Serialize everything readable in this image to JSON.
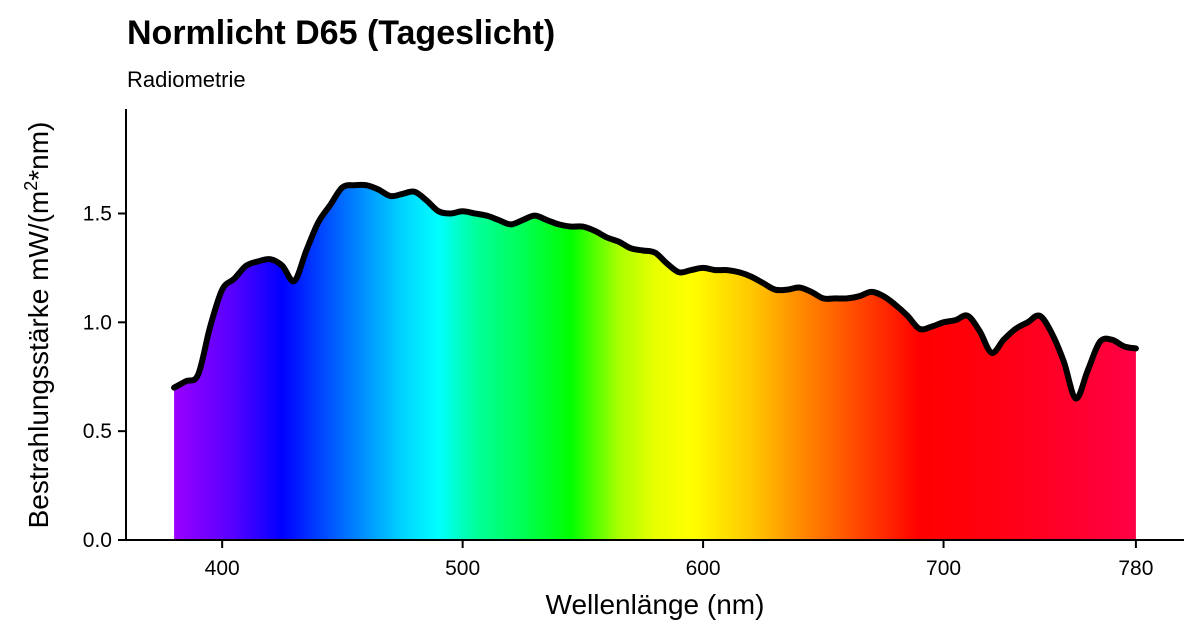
{
  "chart_data": {
    "type": "area",
    "title": "Normlicht D65 (Tageslicht)",
    "subtitle": "Radiometrie",
    "xlabel": "Wellenlänge (nm)",
    "ylabel_main": "Bestrahlungsstärke  mW/(m",
    "ylabel_sup": "2",
    "ylabel_tail": "*nm)",
    "xlim": [
      360,
      800
    ],
    "ylim": [
      0,
      1.98
    ],
    "x_ticks": [
      400,
      500,
      600,
      700,
      780
    ],
    "y_ticks": [
      0.0,
      0.5,
      1.0,
      1.5
    ],
    "y_tick_labels": [
      "0.0",
      "0.5",
      "1.0",
      "1.5"
    ],
    "grid": false,
    "line_color": "#000000",
    "fill": "visible-spectrum gradient (violet → blue → cyan → green → yellow → orange → red)",
    "gradient_stops": [
      {
        "nm": 380,
        "color": "#9a00ff"
      },
      {
        "nm": 405,
        "color": "#5500ff"
      },
      {
        "nm": 425,
        "color": "#0000ff"
      },
      {
        "nm": 440,
        "color": "#0040ff"
      },
      {
        "nm": 460,
        "color": "#0095ff"
      },
      {
        "nm": 475,
        "color": "#00d4ff"
      },
      {
        "nm": 490,
        "color": "#00ffff"
      },
      {
        "nm": 505,
        "color": "#00ff9d"
      },
      {
        "nm": 525,
        "color": "#00ff55"
      },
      {
        "nm": 545,
        "color": "#00ff00"
      },
      {
        "nm": 565,
        "color": "#aaff00"
      },
      {
        "nm": 580,
        "color": "#e8ff00"
      },
      {
        "nm": 595,
        "color": "#ffff00"
      },
      {
        "nm": 620,
        "color": "#ffc800"
      },
      {
        "nm": 640,
        "color": "#ff8c00"
      },
      {
        "nm": 665,
        "color": "#ff4600"
      },
      {
        "nm": 690,
        "color": "#ff0000"
      },
      {
        "nm": 720,
        "color": "#ff0010"
      },
      {
        "nm": 780,
        "color": "#ff0045"
      }
    ],
    "x": [
      380,
      385,
      390,
      395,
      400,
      405,
      410,
      415,
      420,
      425,
      430,
      435,
      440,
      445,
      450,
      455,
      460,
      465,
      470,
      475,
      480,
      485,
      490,
      495,
      500,
      505,
      510,
      515,
      520,
      525,
      530,
      535,
      540,
      545,
      550,
      555,
      560,
      565,
      570,
      575,
      580,
      585,
      590,
      595,
      600,
      605,
      610,
      615,
      620,
      625,
      630,
      635,
      640,
      645,
      650,
      655,
      660,
      665,
      670,
      675,
      680,
      685,
      690,
      695,
      700,
      705,
      710,
      715,
      720,
      725,
      730,
      735,
      740,
      745,
      750,
      755,
      760,
      765,
      770,
      775,
      780
    ],
    "values": [
      0.7,
      0.73,
      0.76,
      0.98,
      1.15,
      1.2,
      1.26,
      1.28,
      1.29,
      1.26,
      1.19,
      1.33,
      1.46,
      1.54,
      1.62,
      1.63,
      1.63,
      1.61,
      1.58,
      1.59,
      1.6,
      1.56,
      1.51,
      1.5,
      1.51,
      1.5,
      1.49,
      1.47,
      1.45,
      1.47,
      1.49,
      1.47,
      1.45,
      1.44,
      1.44,
      1.42,
      1.39,
      1.37,
      1.34,
      1.33,
      1.32,
      1.27,
      1.23,
      1.24,
      1.25,
      1.24,
      1.24,
      1.23,
      1.21,
      1.18,
      1.15,
      1.15,
      1.16,
      1.14,
      1.11,
      1.11,
      1.11,
      1.12,
      1.14,
      1.12,
      1.08,
      1.03,
      0.97,
      0.98,
      1.0,
      1.01,
      1.03,
      0.96,
      0.86,
      0.92,
      0.97,
      1.0,
      1.03,
      0.95,
      0.82,
      0.65,
      0.78,
      0.91,
      0.92,
      0.89,
      0.88
    ]
  }
}
